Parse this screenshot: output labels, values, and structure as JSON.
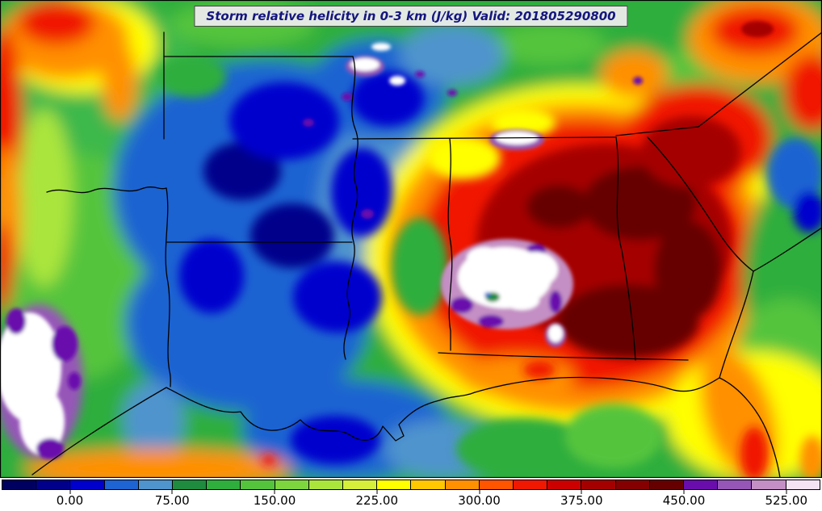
{
  "title": {
    "text": "Storm relative helicity in 0-3 km (J/kg) Valid: 201805290800"
  },
  "chart_data": {
    "type": "heatmap",
    "subtype": "filled-contour-weather-map",
    "title": "Storm relative helicity in 0-3 km (J/kg) Valid: 201805290800",
    "variable": "Storm relative helicity in 0-3 km",
    "units": "J/kg",
    "valid_time": "201805290800",
    "region": "Southeastern United States (Texas / Oklahoma east to the Carolinas, Gulf Coast states) with state boundaries drawn in black",
    "colorbar": {
      "orientation": "horizontal",
      "position": "bottom",
      "range": [
        -50,
        550
      ],
      "segment_interval": 25,
      "tick_values": [
        0,
        75,
        150,
        225,
        300,
        375,
        450,
        525
      ],
      "tick_labels": [
        "0.00",
        "75.00",
        "150.00",
        "225.00",
        "300.00",
        "375.00",
        "450.00",
        "525.00"
      ],
      "segment_colors": [
        "#000060",
        "#00008b",
        "#0000cd",
        "#1e64d2",
        "#4f94cd",
        "#1f8b3f",
        "#2fae3e",
        "#55c43d",
        "#7ed63e",
        "#aae53c",
        "#d5ef3a",
        "#ffff00",
        "#ffc800",
        "#ff9000",
        "#ff5500",
        "#f01800",
        "#cd0000",
        "#a50000",
        "#850000",
        "#660000",
        "#6a0dad",
        "#9656b8",
        "#c48fc4",
        "#f3e3f3"
      ]
    },
    "features": [
      "Off-scale maximum (> 525 J/kg, white with purple fringe) centered over south-central Alabama",
      "Broad 300-450 J/kg red / dark-red swath covering most of Alabama and Georgia with maroon embedded maxima",
      "Orange and yellow fringe (150-300 J/kg) surrounding the Alabama/Georgia maximum",
      "Low values (0-75 J/kg, blue / navy) over Arkansas, northern Louisiana, Mississippi and the central Gulf coast",
      "Secondary high-value area (white / purple) over south-central Texas near the lower-left edge",
      "Local red/orange maxima along the far west edge, northwest corner, and over the Carolinas in the upper-right corner",
      "Orange band along the lower-left Gulf coast and along the Georgia / Florida Atlantic coast",
      "Scattered small purple and white specks (convective cells) across the northern half of the domain"
    ],
    "layout": {
      "grid": false,
      "frame_color": "#000000",
      "state_border_color": "#000000",
      "title_box_background": "#ececec",
      "title_text_color": "#15157e"
    }
  }
}
